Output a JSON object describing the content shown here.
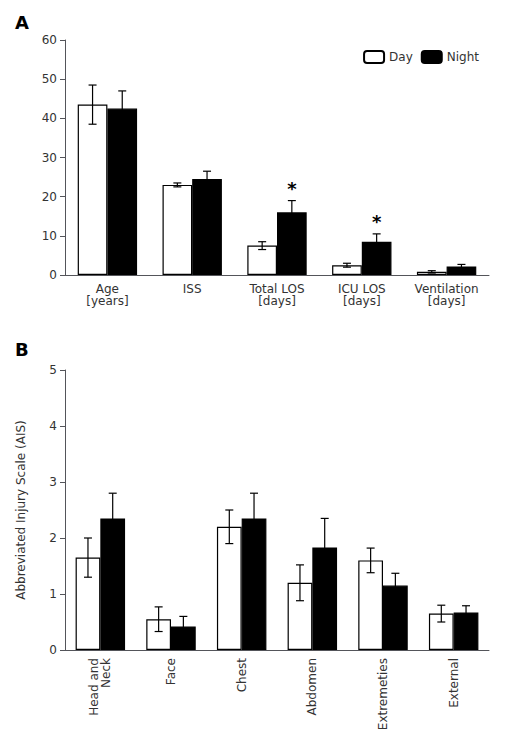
{
  "chart_data": [
    {
      "type": "bar",
      "title": "A",
      "categories": [
        "Age\n[years]",
        "ISS",
        "Total LOS\n[days]",
        "ICU LOS\n[days]",
        "Ventilation\n[days]"
      ],
      "series": [
        {
          "name": "Day",
          "color": "#ffffff",
          "values": [
            43.5,
            23.0,
            7.5,
            2.5,
            0.8
          ],
          "errors": [
            5.0,
            0.5,
            1.0,
            0.5,
            0.3
          ]
        },
        {
          "name": "Night",
          "color": "#000000",
          "values": [
            42.5,
            24.5,
            16.0,
            8.5,
            2.2
          ],
          "errors": [
            4.5,
            2.0,
            3.0,
            2.0,
            0.5
          ]
        }
      ],
      "annotations": [
        {
          "text": "*",
          "category": "Total LOS\n[days]",
          "series": "Night"
        },
        {
          "text": "*",
          "category": "ICU LOS\n[days]",
          "series": "Night"
        }
      ],
      "ylim": [
        0,
        60
      ],
      "yticks": [
        0,
        10,
        20,
        30,
        40,
        50,
        60
      ],
      "grid": false,
      "legend": "upper right"
    },
    {
      "type": "bar",
      "title": "B",
      "categories": [
        "Head and\nNeck",
        "Face",
        "Chest",
        "Abdomen",
        "Extremeties",
        "External"
      ],
      "series": [
        {
          "name": "Day",
          "color": "#ffffff",
          "values": [
            1.65,
            0.55,
            2.2,
            1.2,
            1.6,
            0.65
          ],
          "errors": [
            0.35,
            0.22,
            0.3,
            0.32,
            0.22,
            0.15
          ]
        },
        {
          "name": "Night",
          "color": "#000000",
          "values": [
            2.35,
            0.42,
            2.35,
            1.83,
            1.15,
            0.67
          ],
          "errors": [
            0.45,
            0.18,
            0.45,
            0.52,
            0.22,
            0.12
          ]
        }
      ],
      "ylabel": "Abbreviated Injury Scale (AIS)",
      "ylim": [
        0,
        5
      ],
      "yticks": [
        0,
        1,
        2,
        3,
        4,
        5
      ],
      "grid": false
    }
  ]
}
